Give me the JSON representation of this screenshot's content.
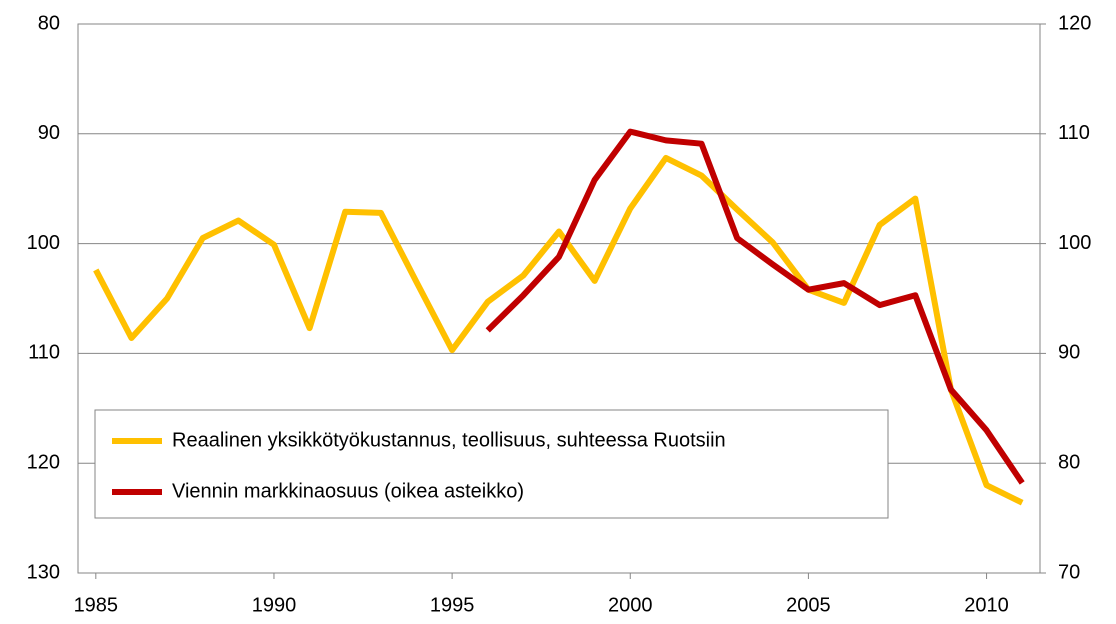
{
  "chart_data": {
    "type": "line",
    "x": [
      1985,
      1986,
      1987,
      1988,
      1989,
      1990,
      1991,
      1992,
      1993,
      1994,
      1995,
      1996,
      1997,
      1998,
      1999,
      2000,
      2001,
      2002,
      2003,
      2004,
      2005,
      2006,
      2007,
      2008,
      2009,
      2010,
      2011
    ],
    "xlim": [
      1984.5,
      2011.5
    ],
    "xticks": [
      1985,
      1990,
      1995,
      2000,
      2005,
      2010
    ],
    "ylim": [
      130,
      80
    ],
    "yticks": [
      80,
      90,
      100,
      110,
      120,
      130
    ],
    "y_inverted": true,
    "y2lim": [
      70,
      120
    ],
    "y2ticks": [
      70,
      80,
      90,
      100,
      110,
      120
    ],
    "grid": true,
    "legend": "lower left",
    "series": [
      {
        "name": "Reaalinen yksikkötyökustannus, teollisuus, suhteessa Ruotsiin",
        "color": "#ffc000",
        "values": [
          102.4,
          108.6,
          105.0,
          99.5,
          97.9,
          100.1,
          107.7,
          97.1,
          97.2,
          103.5,
          109.7,
          105.3,
          102.9,
          98.9,
          103.4,
          96.8,
          92.2,
          93.8,
          96.9,
          99.9,
          104.2,
          105.4,
          98.3,
          95.9,
          113.3,
          122.0,
          123.6
        ]
      },
      {
        "name": "Viennin markkinaosuus (oikea asteikko)",
        "color": "#c00000",
        "axis": "y2",
        "values": [
          null,
          null,
          null,
          null,
          null,
          null,
          null,
          null,
          null,
          null,
          null,
          92.1,
          95.3,
          98.8,
          105.8,
          110.2,
          109.4,
          109.1,
          100.5,
          98.1,
          95.8,
          96.4,
          94.4,
          95.3,
          86.7,
          83.0,
          78.2
        ]
      }
    ]
  }
}
